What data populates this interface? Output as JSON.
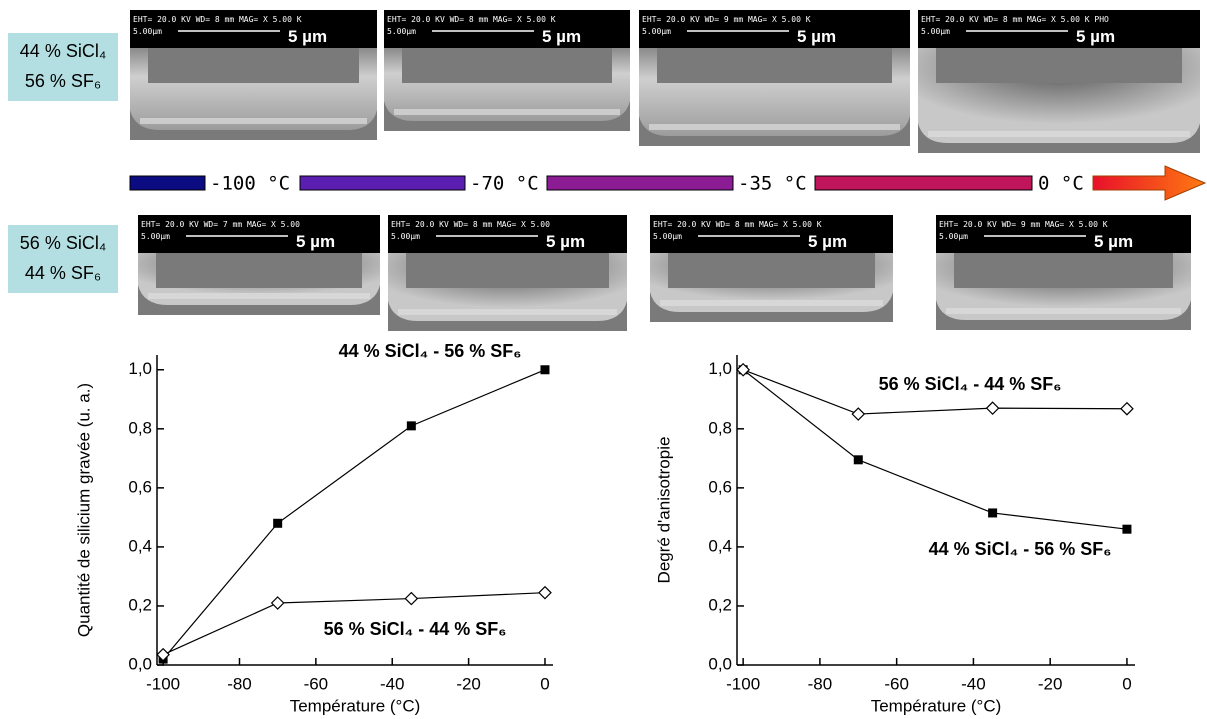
{
  "sem_rows": [
    {
      "label": [
        "44 % SiCl₄",
        "56 % SF₆"
      ],
      "images": [
        {
          "header": "EHT= 20.0 KV   WD= 8    mm   MAG= X 5.00 K",
          "scale_small": "5.00µm",
          "scale": "5 µm"
        },
        {
          "header": "EHT= 20.0 KV   WD= 8    mm   MAG= X 5.00 K",
          "scale_small": "5.00µm",
          "scale": "5 µm"
        },
        {
          "header": "EHT= 20.0 KV   WD= 9    mm   MAG= X 5.00 K",
          "scale_small": "5.00µm",
          "scale": "5 µm"
        },
        {
          "header": "EHT= 20.0 KV   WD= 8    mm   MAG= X 5.00 K PHO",
          "scale_small": "5.00µm",
          "scale": "5 µm"
        }
      ]
    },
    {
      "label": [
        "56 % SiCl₄",
        "44 % SF₆"
      ],
      "images": [
        {
          "header": "EHT= 20.0 KV   WD= 7    mm   MAG= X 5.00",
          "scale_small": "5.00µm",
          "scale": "5 µm"
        },
        {
          "header": "EHT= 20.0 KV   WD= 8    mm   MAG= X 5.00",
          "scale_small": "5.00µm",
          "scale": "5 µm"
        },
        {
          "header": "EHT= 20.0 KV   WD= 8    mm   MAG= X 5.00 K",
          "scale_small": "5.00µm",
          "scale": "5 µm"
        },
        {
          "header": "EHT= 20.0 KV   WD= 9    mm   MAG= X 5.00 K",
          "scale_small": "5.00µm",
          "scale": "5 µm"
        }
      ]
    }
  ],
  "temperature_scale": [
    "-100 °C",
    "-70 °C",
    "-35 °C",
    "0 °C"
  ],
  "chart_data": [
    {
      "type": "line",
      "y_label": "Quantité de silicium gravée (u. a.)",
      "x_label": "Température (°C)",
      "x": [
        -100,
        -70,
        -35,
        0
      ],
      "xlim": [
        -101.6,
        2.1
      ],
      "xticks": [
        -100,
        -80,
        -60,
        -40,
        -20,
        0
      ],
      "ylim": [
        0,
        1.05
      ],
      "yticks": [
        {
          "value": 0,
          "label": "0,0"
        },
        {
          "value": 0.2,
          "label": "0,2"
        },
        {
          "value": 0.4,
          "label": "0,4"
        },
        {
          "value": 0.6,
          "label": "0,6"
        },
        {
          "value": 0.8,
          "label": "0,8"
        },
        {
          "value": 1.0,
          "label": "1,0"
        }
      ],
      "series": [
        {
          "name": "44 % SiCl₄ - 56 % SF₆",
          "color": "#000000",
          "marker": "square",
          "values": [
            0.02,
            0.48,
            0.81,
            1.0
          ]
        },
        {
          "name": "56 % SiCl₄ - 44 % SF₆",
          "color": "#000000",
          "marker": "diamond",
          "values": [
            0.035,
            0.21,
            0.225,
            0.245
          ]
        }
      ]
    },
    {
      "type": "line",
      "y_label": "Degré d'anisotropie",
      "x_label": "Température (°C)",
      "x": [
        -100,
        -70,
        -35,
        0
      ],
      "xlim": [
        -101.6,
        2.1
      ],
      "xticks": [
        -100,
        -80,
        -60,
        -40,
        -20,
        0
      ],
      "ylim": [
        0,
        1.05
      ],
      "yticks": [
        {
          "value": 0,
          "label": "0,0"
        },
        {
          "value": 0.2,
          "label": "0,2"
        },
        {
          "value": 0.4,
          "label": "0,4"
        },
        {
          "value": 0.6,
          "label": "0,6"
        },
        {
          "value": 0.8,
          "label": "0,8"
        },
        {
          "value": 1.0,
          "label": "1,0"
        }
      ],
      "series": [
        {
          "name": "44 % SiCl₄ - 56 % SF₆",
          "color": "#000000",
          "marker": "square",
          "values": [
            1.0,
            0.695,
            0.515,
            0.46
          ]
        },
        {
          "name": "56 % SiCl₄ - 44 % SF₆",
          "color": "#000000",
          "marker": "diamond",
          "values": [
            1.0,
            0.85,
            0.87,
            0.868
          ]
        }
      ]
    }
  ]
}
